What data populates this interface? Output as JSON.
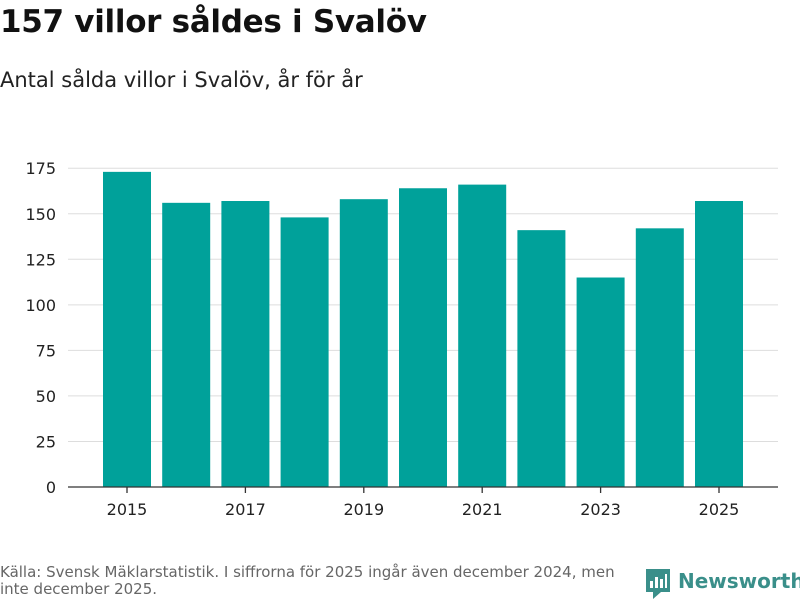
{
  "header": {
    "title": "157 villor såldes i Svalöv",
    "subtitle": "Antal sålda villor i Svalöv, år för år"
  },
  "chart_data": {
    "type": "bar",
    "categories": [
      "2015",
      "2016",
      "2017",
      "2018",
      "2019",
      "2020",
      "2021",
      "2022",
      "2023",
      "2024",
      "2025"
    ],
    "values": [
      173,
      156,
      157,
      148,
      158,
      164,
      166,
      141,
      115,
      142,
      157
    ],
    "x_tick_labels": [
      "2015",
      "2017",
      "2019",
      "2021",
      "2023",
      "2025"
    ],
    "y_ticks": [
      0,
      25,
      50,
      75,
      100,
      125,
      150,
      175
    ],
    "ylim": [
      0,
      185
    ],
    "xlabel": "",
    "ylabel": "",
    "grid": true,
    "bar_color": "#00a19a"
  },
  "footer": {
    "source": "Källa: Svensk Mäklarstatistik. I siffrorna för 2025 ingår även december 2024, men inte december 2025.",
    "brand": "Newsworthy",
    "brand_icon": "newsworthy-logo-icon"
  },
  "colors": {
    "bar": "#00a19a",
    "grid": "#dddddd",
    "axis": "#333333",
    "brand": "#3a8f8a"
  }
}
